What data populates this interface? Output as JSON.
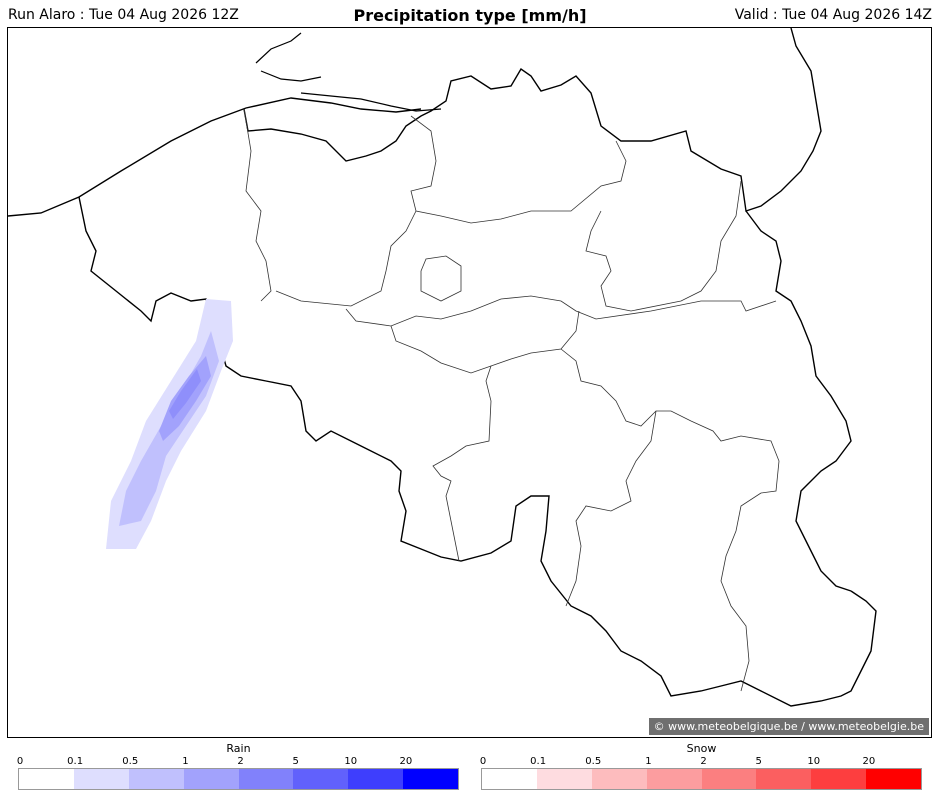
{
  "header": {
    "run": "Run Alaro : Tue 04 Aug 2026 12Z",
    "title": "Precipitation type [mm/h]",
    "valid": "Valid : Tue 04 Aug 2026 14Z"
  },
  "map": {
    "credit": "© www.meteobelgique.be / www.meteobelgie.be",
    "precipitation_type": "rain",
    "max_intensity_class": "1-2"
  },
  "legends": [
    {
      "name": "Rain",
      "ticks": [
        "0",
        "0.1",
        "0.5",
        "1",
        "2",
        "5",
        "10",
        "20"
      ],
      "colors": [
        "#ffffff",
        "#dedefe",
        "#c0c0fd",
        "#a2a2fc",
        "#8181fb",
        "#6161fc",
        "#3e3efd",
        "#0000ff"
      ]
    },
    {
      "name": "Snow",
      "ticks": [
        "0",
        "0.1",
        "0.5",
        "1",
        "2",
        "5",
        "10",
        "20"
      ],
      "colors": [
        "#ffffff",
        "#fedce0",
        "#fdbcbe",
        "#fc9d9f",
        "#fb7f80",
        "#fb5f60",
        "#fd3e3f",
        "#ff0000"
      ]
    }
  ]
}
